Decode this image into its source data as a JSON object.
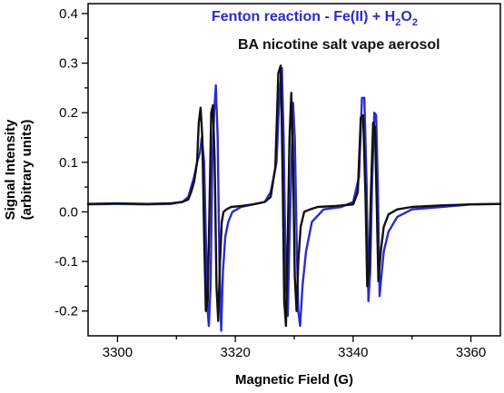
{
  "chart_data": {
    "type": "line",
    "title": "",
    "xlabel": "Magnetic Field (G)",
    "ylabel_line1": "Signal Intensity",
    "ylabel_line2": "(arbitrary units)",
    "xlim": [
      3295,
      3365
    ],
    "ylim": [
      -0.25,
      0.42
    ],
    "xticks": [
      3300,
      3320,
      3340,
      3360
    ],
    "yticks": [
      -0.2,
      -0.1,
      0.0,
      0.1,
      0.2,
      0.3,
      0.4
    ],
    "ytick_labels": [
      "-0.2",
      "-0.1",
      "0.0",
      "0.1",
      "0.2",
      "0.3",
      "0.4"
    ],
    "grid": false,
    "legend_position": "top-right",
    "series": [
      {
        "name_parts": [
          "Fenton reaction - Fe(II) + H",
          "2",
          "O",
          "2"
        ],
        "color": "#2b2bcc",
        "x": [
          3295,
          3300,
          3305,
          3309,
          3311,
          3312,
          3312.5,
          3313,
          3313.5,
          3314,
          3314.3,
          3314.7,
          3315,
          3315.3,
          3315.5,
          3315.8,
          3316.1,
          3316.4,
          3316.7,
          3317,
          3317.3,
          3317.6,
          3317.9,
          3318.3,
          3318.8,
          3319.5,
          3321,
          3323,
          3325,
          3326,
          3327,
          3327.5,
          3327.9,
          3328.2,
          3328.6,
          3328.9,
          3329.2,
          3329.5,
          3329.8,
          3330.1,
          3330.4,
          3330.7,
          3331,
          3331.4,
          3332,
          3333,
          3335,
          3338,
          3340,
          3341,
          3341.5,
          3341.9,
          3342.3,
          3342.6,
          3342.9,
          3343.2,
          3343.6,
          3343.9,
          3344.2,
          3344.5,
          3344.8,
          3345.2,
          3346,
          3347.5,
          3350,
          3355,
          3360,
          3365
        ],
        "y": [
          0.015,
          0.016,
          0.015,
          0.016,
          0.02,
          0.03,
          0.05,
          0.07,
          0.1,
          0.12,
          0.15,
          0.1,
          -0.05,
          -0.2,
          -0.23,
          -0.15,
          0.1,
          0.2,
          0.255,
          0.15,
          -0.1,
          -0.24,
          -0.12,
          -0.05,
          -0.02,
          0.0,
          0.01,
          0.015,
          0.02,
          0.04,
          0.1,
          0.24,
          0.29,
          0.15,
          -0.15,
          -0.21,
          -0.05,
          0.08,
          0.22,
          0.15,
          -0.05,
          -0.2,
          -0.23,
          -0.15,
          -0.08,
          -0.02,
          0.005,
          0.01,
          0.02,
          0.07,
          0.23,
          0.23,
          0.05,
          -0.18,
          -0.12,
          0.05,
          0.2,
          0.195,
          0.05,
          -0.17,
          -0.13,
          -0.08,
          -0.04,
          -0.01,
          0.005,
          0.01,
          0.015,
          0.016
        ]
      },
      {
        "name_parts": [
          "BA nicotine salt vape aerosol"
        ],
        "color": "#111111",
        "x": [
          3295,
          3300,
          3305,
          3309,
          3311,
          3312,
          3312.5,
          3313,
          3313.5,
          3313.8,
          3314.1,
          3314.4,
          3314.7,
          3315,
          3315.3,
          3315.6,
          3315.9,
          3316.2,
          3316.5,
          3316.8,
          3317.1,
          3317.4,
          3317.7,
          3318,
          3318.5,
          3319.3,
          3321,
          3323,
          3325,
          3326,
          3326.8,
          3327.3,
          3327.7,
          3328,
          3328.3,
          3328.6,
          3328.9,
          3329.2,
          3329.5,
          3329.8,
          3330.1,
          3330.4,
          3330.7,
          3331.1,
          3331.7,
          3332.7,
          3334,
          3337,
          3340,
          3340.8,
          3341.3,
          3341.7,
          3342.1,
          3342.4,
          3342.7,
          3343,
          3343.4,
          3343.7,
          3344,
          3344.3,
          3344.7,
          3345.2,
          3346,
          3347.5,
          3350,
          3355,
          3360,
          3365
        ],
        "y": [
          0.016,
          0.017,
          0.016,
          0.017,
          0.02,
          0.025,
          0.04,
          0.06,
          0.1,
          0.18,
          0.21,
          0.15,
          -0.05,
          -0.2,
          -0.18,
          0.0,
          0.2,
          0.215,
          0.1,
          -0.15,
          -0.22,
          -0.1,
          -0.02,
          0.0,
          0.005,
          0.01,
          0.012,
          0.015,
          0.02,
          0.03,
          0.09,
          0.28,
          0.295,
          0.1,
          -0.18,
          -0.23,
          -0.05,
          0.15,
          0.24,
          0.1,
          -0.13,
          -0.2,
          -0.1,
          -0.03,
          0.0,
          0.005,
          0.01,
          0.012,
          0.015,
          0.04,
          0.19,
          0.195,
          0.03,
          -0.15,
          -0.12,
          0.03,
          0.18,
          0.17,
          0.02,
          -0.14,
          -0.08,
          -0.03,
          -0.005,
          0.005,
          0.01,
          0.013,
          0.015,
          0.016
        ]
      }
    ]
  }
}
